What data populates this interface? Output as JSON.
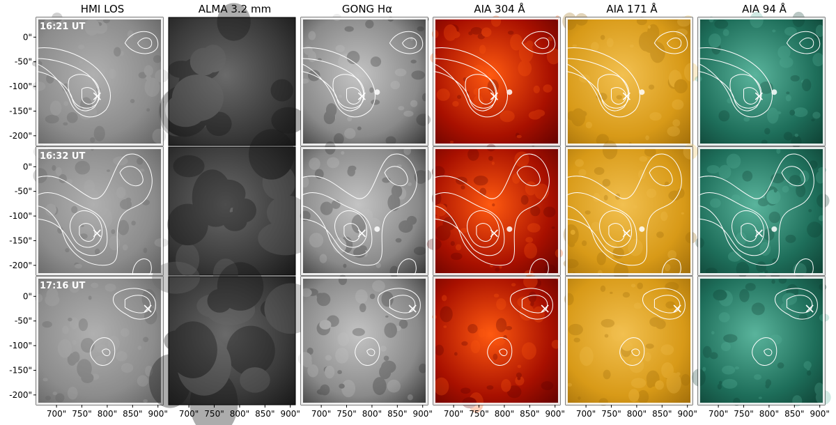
{
  "columns": [
    {
      "title": "HMI LOS",
      "key": "hmi",
      "base": "#8c8c8c",
      "light": "#b0b0b0",
      "dark": "#5a5a5a"
    },
    {
      "title": "ALMA 3.2 mm",
      "key": "alma",
      "base": "#3a3a3a",
      "light": "#6a6a6a",
      "dark": "#151515"
    },
    {
      "title": "GONG Hα",
      "key": "gong",
      "base": "#8a8a8a",
      "light": "#c4c4c4",
      "dark": "#2a2a2a"
    },
    {
      "title": "AIA 304 Å",
      "key": "aia304",
      "base": "#a81000",
      "light": "#ff5a10",
      "dark": "#5a0000"
    },
    {
      "title": "AIA 171 Å",
      "key": "aia171",
      "base": "#d89a18",
      "light": "#f2c050",
      "dark": "#9a6808"
    },
    {
      "title": "AIA 94 Å",
      "key": "aia94",
      "base": "#1e6e5a",
      "light": "#5ab49c",
      "dark": "#0c3a2e"
    }
  ],
  "rows": [
    {
      "time": "16:21 UT",
      "marker": {
        "x": 780,
        "y": -120
      }
    },
    {
      "time": "16:32 UT",
      "marker": {
        "x": 780,
        "y": -135
      }
    },
    {
      "time": "17:16 UT",
      "marker": {
        "x": 880,
        "y": -25
      }
    }
  ],
  "axes": {
    "x_ticks": [
      "700\"",
      "750\"",
      "800\"",
      "850\"",
      "900\""
    ],
    "x_values": [
      700,
      750,
      800,
      850,
      900
    ],
    "y_ticks": [
      "0\"",
      "-50\"",
      "-100\"",
      "-150\"",
      "-200\""
    ],
    "y_values": [
      0,
      -50,
      -100,
      -150,
      -200
    ],
    "xlim": [
      660,
      910
    ],
    "ylim": [
      -220,
      40
    ]
  },
  "contour_color": "#ffffff"
}
